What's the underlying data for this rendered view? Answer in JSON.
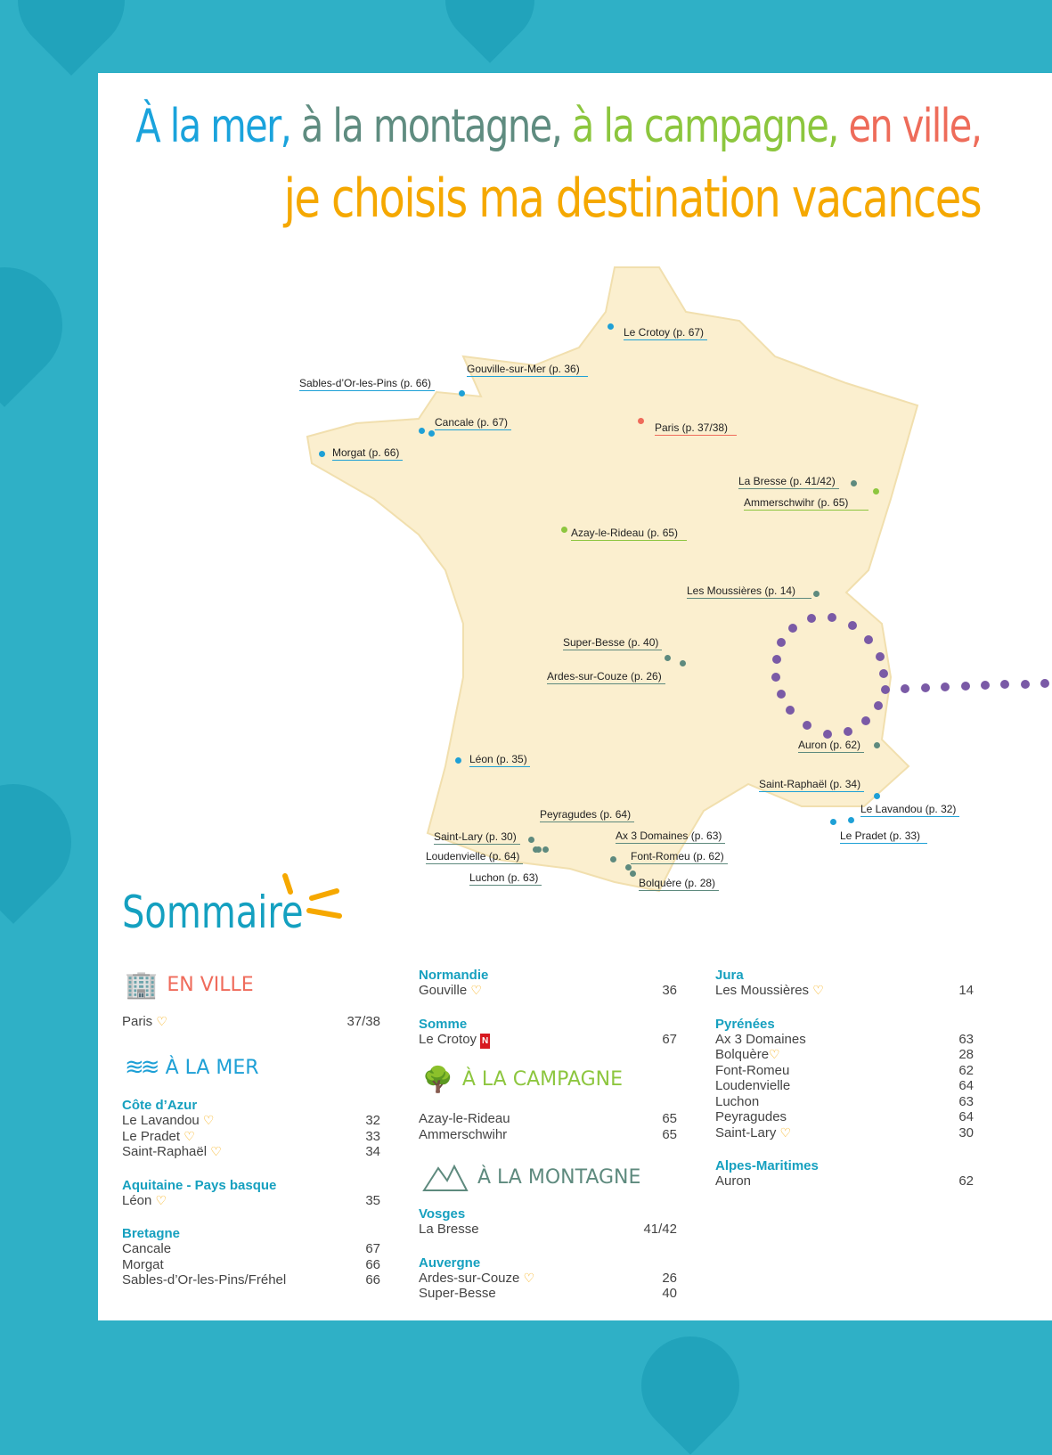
{
  "title": {
    "line1": [
      {
        "text": "À la mer,",
        "color": "#1aa3dc"
      },
      {
        "text": "à la montagne,",
        "color": "#5f8c80"
      },
      {
        "text": "à la campagne,",
        "color": "#8cc63e"
      },
      {
        "text": "en ville,",
        "color": "#ee6c5a"
      }
    ],
    "line2": "je choisis ma destination vacances",
    "line2_color": "#f5a800"
  },
  "map_labels": [
    "Le Crotoy (p. 67)",
    "Gouville-sur-Mer (p. 36)",
    "Sables-d’Or-les-Pins (p. 66)",
    "Cancale (p. 67)",
    "Morgat (p. 66)",
    "Paris (p. 37/38)",
    "La Bresse (p. 41/42)",
    "Ammerschwihr (p. 65)",
    "Azay-le-Rideau (p. 65)",
    "Les Moussières (p. 14)",
    "Super-Besse (p. 40)",
    "Ardes-sur-Couze (p. 26)",
    "Auron (p. 62)",
    "Léon (p. 35)",
    "Saint-Raphaël (p. 34)",
    "Le Lavandou (p. 32)",
    "Le Pradet (p. 33)",
    "Peyragudes (p. 64)",
    "Saint-Lary (p. 30)",
    "Loudenvielle (p. 64)",
    "Luchon (p. 63)",
    "Ax 3 Domaines (p. 63)",
    "Font-Romeu (p. 62)",
    "Bolquère (p. 28)"
  ],
  "sommaire": {
    "title": "Sommaire",
    "en_ville": {
      "label": "EN VILLE",
      "color": "#ef6b5b",
      "rows": [
        {
          "name": "Paris",
          "page": "37/38",
          "heart": true
        }
      ]
    },
    "a_la_mer": {
      "label": "À LA MER",
      "color": "#1ea0d6",
      "regions": [
        {
          "name": "Côte d’Azur",
          "rows": [
            {
              "name": "Le Lavandou",
              "page": "32"
            },
            {
              "name": "Le Pradet",
              "page": "33"
            },
            {
              "name": "Saint-Raphaël",
              "page": "34"
            }
          ]
        },
        {
          "name": "Aquitaine - Pays basque",
          "rows": [
            {
              "name": "Léon",
              "page": "35"
            }
          ]
        },
        {
          "name": "Bretagne",
          "rows": [
            {
              "name": "Cancale",
              "page": "67"
            },
            {
              "name": "Morgat",
              "page": "66"
            },
            {
              "name": "Sables-d’Or-les-Pins/Fréhel",
              "page": "66"
            }
          ]
        },
        {
          "name": "Normandie",
          "rows": [
            {
              "name": "Gouville",
              "page": "36"
            }
          ]
        },
        {
          "name": "Somme",
          "rows": [
            {
              "name": "Le Crotoy",
              "page": "67",
              "badge": "N"
            }
          ]
        }
      ]
    },
    "a_la_campagne": {
      "label": "À LA CAMPAGNE",
      "color": "#8dc63f",
      "rows": [
        {
          "name": "Azay-le-Rideau",
          "page": "65"
        },
        {
          "name": "Ammerschwihr",
          "page": "65"
        }
      ]
    },
    "a_la_montagne": {
      "label": "À LA MONTAGNE",
      "color": "#5e8a7e",
      "regions": [
        {
          "name": "Vosges",
          "rows": [
            {
              "name": "La Bresse",
              "page": "41/42"
            }
          ]
        },
        {
          "name": "Auvergne",
          "rows": [
            {
              "name": "Ardes-sur-Couze",
              "page": "26"
            },
            {
              "name": "Super-Besse",
              "page": "40"
            }
          ]
        },
        {
          "name": "Jura",
          "rows": [
            {
              "name": "Les Moussières",
              "page": "14"
            }
          ]
        },
        {
          "name": "Pyrénées",
          "rows": [
            {
              "name": "Ax 3 Domaines",
              "page": "63"
            },
            {
              "name": "Bolquère",
              "page": "28"
            },
            {
              "name": "Font-Romeu",
              "page": "62"
            },
            {
              "name": "Loudenvielle",
              "page": "64"
            },
            {
              "name": "Luchon",
              "page": "63"
            },
            {
              "name": "Peyragudes",
              "page": "64"
            },
            {
              "name": "Saint-Lary",
              "page": "30"
            }
          ]
        },
        {
          "name": "Alpes-Maritimes",
          "rows": [
            {
              "name": "Auron",
              "page": "62"
            }
          ]
        }
      ]
    }
  },
  "heart_symbol": "♡"
}
